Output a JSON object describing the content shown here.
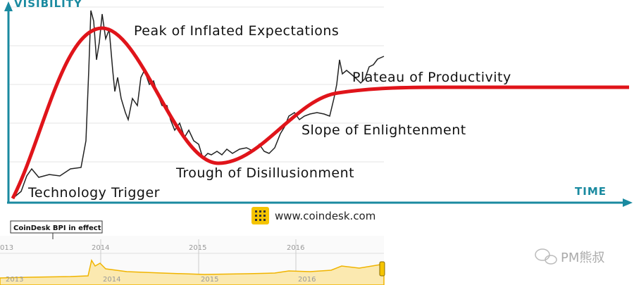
{
  "axes": {
    "y_label": "VISIBILITY",
    "x_label": "TIME"
  },
  "phases": [
    "Peak of Inflated Expectations",
    "Plateau of Productivity",
    "Slope of Enlightenment",
    "Trough of Disillusionment",
    "Technology Trigger"
  ],
  "source": "www.coindesk.com",
  "navigator": {
    "flag": "CoinDesk BPI in effect",
    "top_years": [
      "013",
      "2014",
      "2015",
      "2016"
    ],
    "bottom_years": [
      "2013",
      "2014",
      "2015",
      "2016"
    ]
  },
  "watermark": "PM熊叔"
}
